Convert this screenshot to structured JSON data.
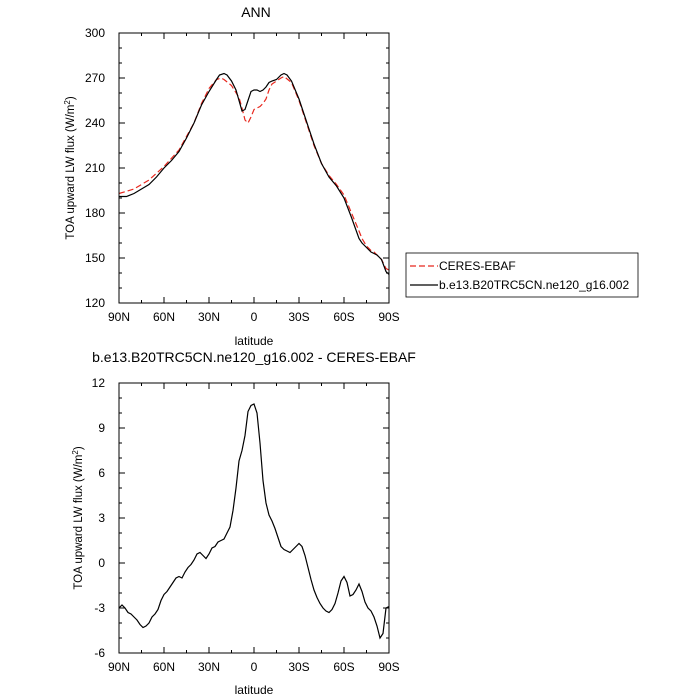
{
  "chart_data": [
    {
      "type": "line",
      "title": "ANN",
      "xlabel": "latitude",
      "ylabel": "TOA upward LW flux (W/m",
      "ylabel_sup": "2",
      "ylabel_end": ")",
      "xlim": [
        90,
        -90
      ],
      "ylim": [
        120,
        300
      ],
      "x_ticks": [
        90,
        60,
        30,
        0,
        -30,
        -60,
        -90
      ],
      "x_tick_labels": [
        "90N",
        "60N",
        "30N",
        "0",
        "30S",
        "60S",
        "90S"
      ],
      "y_ticks": [
        120,
        150,
        180,
        210,
        240,
        270,
        300
      ],
      "y_tick_labels": [
        "120",
        "150",
        "180",
        "210",
        "240",
        "270",
        "300"
      ],
      "grid": false,
      "legend_position": "right",
      "series": [
        {
          "name": "CERES-EBAF",
          "color": "#e8281e",
          "dash": "6,3",
          "x": [
            90,
            80,
            70,
            60,
            50,
            40,
            35,
            30,
            25,
            22,
            20,
            15,
            10,
            8,
            6,
            4,
            2,
            0,
            -2,
            -4,
            -6,
            -8,
            -10,
            -12,
            -15,
            -18,
            -20,
            -25,
            -30,
            -35,
            -40,
            -45,
            -50,
            -55,
            -60,
            -65,
            -70,
            -72,
            -75,
            -78,
            -80,
            -85,
            -88,
            -90
          ],
          "values": [
            193,
            196,
            202,
            211,
            222,
            240,
            253,
            263,
            269,
            270,
            269,
            265,
            257,
            250,
            242,
            240,
            244,
            249,
            250,
            251,
            253,
            256,
            262,
            266,
            268,
            270,
            271,
            267,
            255,
            240,
            225,
            213,
            205,
            199,
            192,
            180,
            168,
            163,
            158,
            155,
            154,
            149,
            143,
            142
          ]
        },
        {
          "name": "b.e13.B20TRC5CN.ne120_g16.002",
          "color": "#000000",
          "dash": "",
          "x": [
            90,
            85,
            80,
            75,
            70,
            65,
            60,
            55,
            50,
            45,
            40,
            35,
            30,
            25,
            23,
            20,
            18,
            15,
            12,
            10,
            8,
            6,
            4,
            2,
            0,
            -2,
            -4,
            -6,
            -8,
            -10,
            -12,
            -15,
            -18,
            -20,
            -22,
            -25,
            -30,
            -35,
            -40,
            -45,
            -50,
            -55,
            -60,
            -65,
            -70,
            -72,
            -75,
            -78,
            -80,
            -82,
            -85,
            -88,
            -90
          ],
          "values": [
            191,
            191,
            193,
            196,
            199,
            204,
            210,
            215,
            221,
            230,
            240,
            252,
            261,
            269,
            272,
            273,
            272,
            268,
            262,
            255,
            248,
            249,
            255,
            261,
            262,
            262,
            261,
            262,
            264,
            267,
            268,
            269,
            272,
            273,
            272,
            268,
            256,
            241,
            226,
            213,
            204,
            198,
            190,
            177,
            163,
            160,
            157,
            154,
            153,
            152,
            149,
            141,
            139
          ]
        }
      ]
    },
    {
      "type": "line",
      "title": "b.e13.B20TRC5CN.ne120_g16.002 - CERES-EBAF",
      "xlabel": "latitude",
      "ylabel": "TOA upward LW flux (W/m",
      "ylabel_sup": "2",
      "ylabel_end": ")",
      "xlim": [
        90,
        -90
      ],
      "ylim": [
        -6,
        12
      ],
      "x_ticks": [
        90,
        60,
        30,
        0,
        -30,
        -60,
        -90
      ],
      "x_tick_labels": [
        "90N",
        "60N",
        "30N",
        "0",
        "30S",
        "60S",
        "90S"
      ],
      "y_ticks": [
        -6,
        -3,
        0,
        3,
        6,
        9,
        12
      ],
      "y_tick_labels": [
        "-6",
        "-3",
        "0",
        "3",
        "6",
        "9",
        "12"
      ],
      "grid": false,
      "series": [
        {
          "name": "b.e13.B20TRC5CN.ne120_g16.002 - CERES-EBAF",
          "color": "#000000",
          "dash": "",
          "x": [
            90,
            88,
            86,
            84,
            82,
            80,
            78,
            76,
            74,
            72,
            70,
            68,
            66,
            64,
            62,
            60,
            58,
            56,
            54,
            52,
            50,
            48,
            46,
            44,
            42,
            40,
            38,
            36,
            34,
            32,
            30,
            28,
            26,
            24,
            22,
            20,
            18,
            16,
            14,
            12,
            10,
            8,
            6,
            4,
            2,
            0,
            -2,
            -4,
            -6,
            -8,
            -10,
            -12,
            -14,
            -16,
            -18,
            -20,
            -22,
            -24,
            -26,
            -28,
            -30,
            -32,
            -34,
            -36,
            -38,
            -40,
            -42,
            -44,
            -46,
            -48,
            -50,
            -52,
            -54,
            -56,
            -58,
            -60,
            -62,
            -64,
            -66,
            -68,
            -70,
            -72,
            -74,
            -76,
            -78,
            -80,
            -82,
            -84,
            -86,
            -88,
            -90
          ],
          "values": [
            -3.0,
            -2.8,
            -3.0,
            -3.3,
            -3.4,
            -3.6,
            -3.8,
            -4.1,
            -4.3,
            -4.2,
            -4.0,
            -3.6,
            -3.4,
            -3.1,
            -2.5,
            -2.1,
            -1.9,
            -1.6,
            -1.3,
            -1.0,
            -0.9,
            -1.0,
            -0.6,
            -0.3,
            -0.1,
            0.2,
            0.6,
            0.7,
            0.5,
            0.3,
            0.6,
            1.0,
            1.1,
            1.4,
            1.5,
            1.6,
            2.0,
            2.4,
            3.5,
            5.0,
            6.8,
            7.5,
            8.5,
            10.1,
            10.5,
            10.6,
            10.0,
            8.0,
            5.5,
            4.0,
            3.2,
            2.8,
            2.3,
            1.7,
            1.1,
            0.9,
            0.8,
            0.7,
            0.9,
            1.1,
            1.3,
            1.1,
            0.5,
            -0.3,
            -1.1,
            -1.8,
            -2.3,
            -2.7,
            -3.0,
            -3.2,
            -3.3,
            -3.1,
            -2.7,
            -2.0,
            -1.2,
            -0.9,
            -1.3,
            -2.2,
            -2.1,
            -1.8,
            -1.4,
            -1.9,
            -2.6,
            -3.0,
            -3.2,
            -3.6,
            -4.2,
            -5.0,
            -4.7,
            -3.0,
            -2.9
          ]
        }
      ]
    }
  ]
}
